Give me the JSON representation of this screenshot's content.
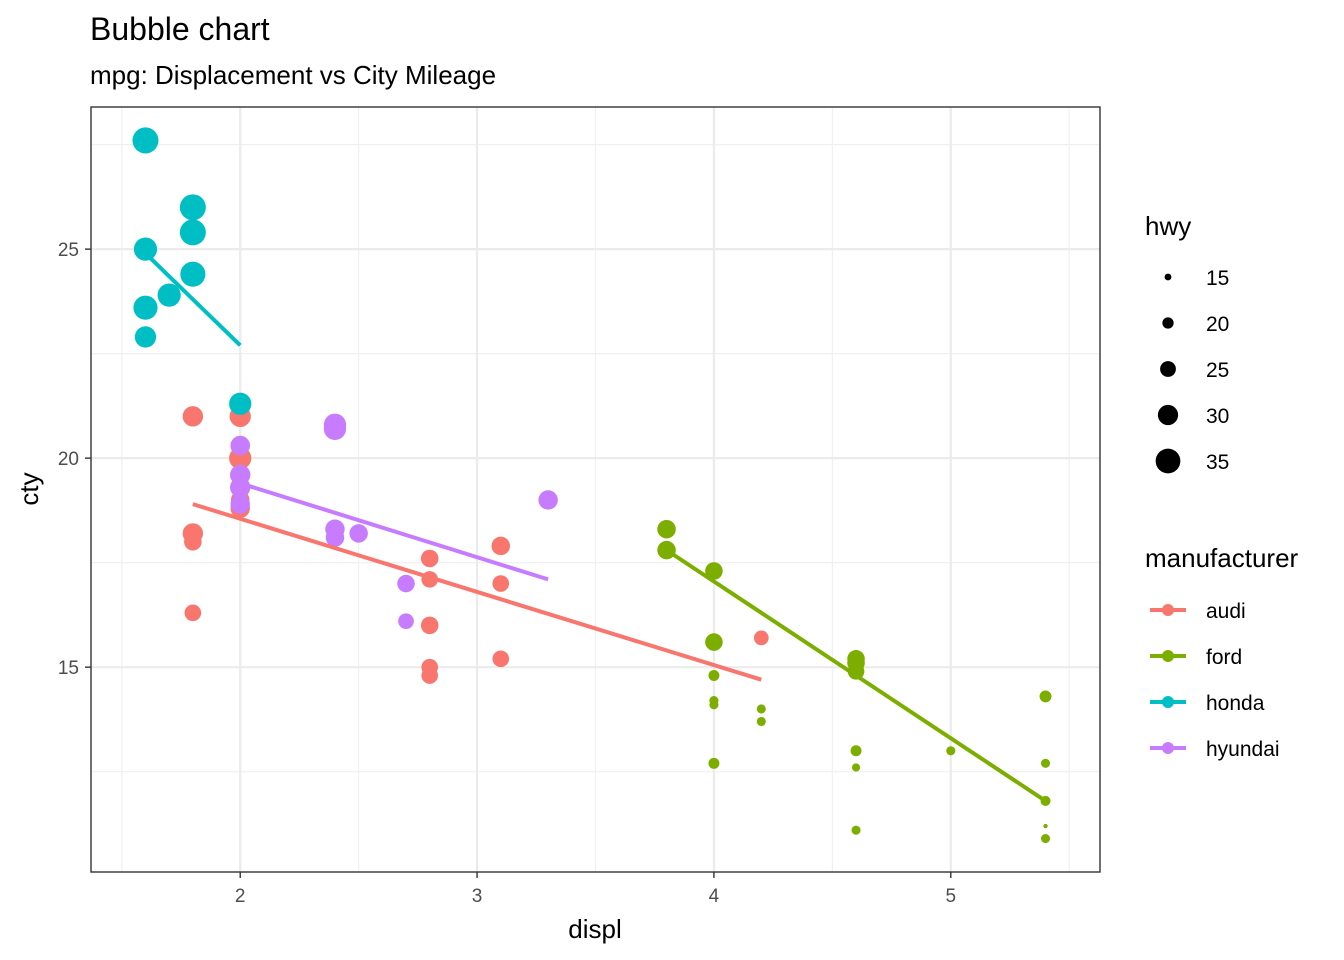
{
  "chart_data": {
    "type": "scatter",
    "title": "Bubble chart",
    "subtitle": "mpg: Displacement vs City Mileage",
    "xlabel": "displ",
    "ylabel": "cty",
    "xlim": [
      1.37,
      5.63
    ],
    "ylim": [
      10.1,
      28.4
    ],
    "x_ticks": [
      2,
      3,
      4,
      5
    ],
    "y_ticks": [
      15,
      20,
      25
    ],
    "grid": true,
    "size_legend": {
      "title": "hwy",
      "entries": [
        15,
        20,
        25,
        30,
        35
      ]
    },
    "color_legend": {
      "title": "manufacturer",
      "placement": "right"
    },
    "series": [
      {
        "name": "audi",
        "color": "#F8766D",
        "points": [
          {
            "x": 1.8,
            "y": 18.2,
            "s": 29
          },
          {
            "x": 1.8,
            "y": 21.0,
            "s": 29
          },
          {
            "x": 2.0,
            "y": 20.0,
            "s": 31
          },
          {
            "x": 2.0,
            "y": 21.0,
            "s": 30
          },
          {
            "x": 2.8,
            "y": 16.0,
            "s": 26
          },
          {
            "x": 2.8,
            "y": 17.6,
            "s": 26
          },
          {
            "x": 3.1,
            "y": 17.9,
            "s": 27
          },
          {
            "x": 1.8,
            "y": 18.0,
            "s": 26
          },
          {
            "x": 1.8,
            "y": 16.3,
            "s": 25
          },
          {
            "x": 2.0,
            "y": 20.3,
            "s": 28
          },
          {
            "x": 2.0,
            "y": 19.0,
            "s": 27
          },
          {
            "x": 2.8,
            "y": 15.0,
            "s": 25
          },
          {
            "x": 2.8,
            "y": 17.1,
            "s": 25
          },
          {
            "x": 3.1,
            "y": 17.0,
            "s": 25
          },
          {
            "x": 3.1,
            "y": 15.2,
            "s": 25
          },
          {
            "x": 4.2,
            "y": 15.7,
            "s": 23
          },
          {
            "x": 2.0,
            "y": 18.8,
            "s": 28
          },
          {
            "x": 2.8,
            "y": 14.8,
            "s": 25
          }
        ]
      },
      {
        "name": "ford",
        "color": "#7CAE00",
        "points": [
          {
            "x": 3.8,
            "y": 18.3,
            "s": 27
          },
          {
            "x": 3.8,
            "y": 17.8,
            "s": 27
          },
          {
            "x": 4.0,
            "y": 17.3,
            "s": 26
          },
          {
            "x": 4.0,
            "y": 15.6,
            "s": 26
          },
          {
            "x": 4.0,
            "y": 14.8,
            "s": 19
          },
          {
            "x": 4.0,
            "y": 14.2,
            "s": 17
          },
          {
            "x": 4.0,
            "y": 14.1,
            "s": 17
          },
          {
            "x": 4.0,
            "y": 12.7,
            "s": 19
          },
          {
            "x": 4.2,
            "y": 14.0,
            "s": 17
          },
          {
            "x": 4.2,
            "y": 13.7,
            "s": 17
          },
          {
            "x": 4.6,
            "y": 15.2,
            "s": 26
          },
          {
            "x": 4.6,
            "y": 15.1,
            "s": 26
          },
          {
            "x": 4.6,
            "y": 14.9,
            "s": 25
          },
          {
            "x": 4.6,
            "y": 13.0,
            "s": 19
          },
          {
            "x": 4.6,
            "y": 13.0,
            "s": 18
          },
          {
            "x": 4.6,
            "y": 12.6,
            "s": 16
          },
          {
            "x": 4.6,
            "y": 11.1,
            "s": 17
          },
          {
            "x": 5.0,
            "y": 13.0,
            "s": 17
          },
          {
            "x": 5.4,
            "y": 14.3,
            "s": 20
          },
          {
            "x": 5.4,
            "y": 12.7,
            "s": 17
          },
          {
            "x": 5.4,
            "y": 11.8,
            "s": 18
          },
          {
            "x": 5.4,
            "y": 11.2,
            "s": 12
          },
          {
            "x": 5.4,
            "y": 10.9,
            "s": 17
          }
        ]
      },
      {
        "name": "honda",
        "color": "#00BFC4",
        "points": [
          {
            "x": 1.6,
            "y": 27.6,
            "s": 35
          },
          {
            "x": 1.8,
            "y": 26.0,
            "s": 35
          },
          {
            "x": 1.8,
            "y": 25.4,
            "s": 35
          },
          {
            "x": 1.6,
            "y": 25.0,
            "s": 32
          },
          {
            "x": 1.8,
            "y": 24.4,
            "s": 34
          },
          {
            "x": 1.7,
            "y": 23.9,
            "s": 32
          },
          {
            "x": 1.6,
            "y": 23.6,
            "s": 33
          },
          {
            "x": 1.6,
            "y": 22.9,
            "s": 30
          },
          {
            "x": 2.0,
            "y": 21.3,
            "s": 31
          }
        ]
      },
      {
        "name": "hyundai",
        "color": "#C77CFF",
        "points": [
          {
            "x": 2.4,
            "y": 20.8,
            "s": 31
          },
          {
            "x": 2.4,
            "y": 20.7,
            "s": 31
          },
          {
            "x": 2.0,
            "y": 20.3,
            "s": 28
          },
          {
            "x": 2.0,
            "y": 19.6,
            "s": 29
          },
          {
            "x": 2.0,
            "y": 19.3,
            "s": 29
          },
          {
            "x": 2.0,
            "y": 18.9,
            "s": 28
          },
          {
            "x": 3.3,
            "y": 19.0,
            "s": 28
          },
          {
            "x": 2.4,
            "y": 18.3,
            "s": 28
          },
          {
            "x": 2.5,
            "y": 18.2,
            "s": 27
          },
          {
            "x": 2.4,
            "y": 18.1,
            "s": 27
          },
          {
            "x": 2.7,
            "y": 17.0,
            "s": 26
          },
          {
            "x": 2.7,
            "y": 17.0,
            "s": 25
          },
          {
            "x": 2.7,
            "y": 16.1,
            "s": 24
          }
        ]
      }
    ],
    "trend_lines": [
      {
        "series": "audi",
        "x": [
          1.8,
          4.2
        ],
        "y": [
          18.9,
          14.7
        ]
      },
      {
        "series": "ford",
        "x": [
          3.8,
          5.4
        ],
        "y": [
          17.8,
          11.8
        ]
      },
      {
        "series": "honda",
        "x": [
          1.6,
          2.0
        ],
        "y": [
          24.9,
          22.7
        ]
      },
      {
        "series": "hyundai",
        "x": [
          2.0,
          3.3
        ],
        "y": [
          19.4,
          17.1
        ]
      }
    ]
  }
}
